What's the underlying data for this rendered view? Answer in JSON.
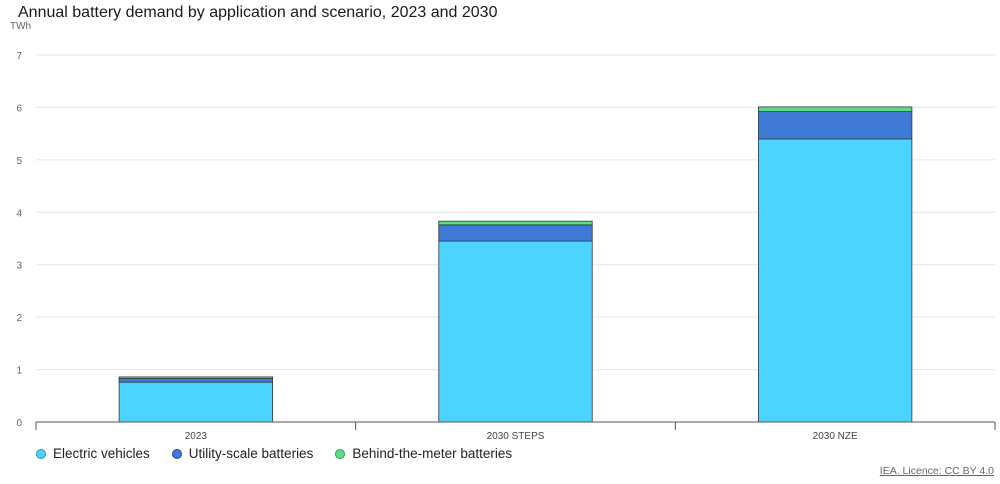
{
  "chart_data": {
    "type": "bar",
    "stacked": true,
    "title": "Annual battery demand by application and scenario, 2023 and 2030",
    "ylabel": "TWh",
    "xlabel": "",
    "categories": [
      "2023",
      "2030 STEPS",
      "2030 NZE"
    ],
    "ylim": [
      0,
      7
    ],
    "yticks": [
      0,
      1,
      2,
      3,
      4,
      5,
      6,
      7
    ],
    "grid": true,
    "legend_position": "bottom-left",
    "series": [
      {
        "name": "Electric vehicles",
        "color": "#4dd3ff",
        "values": [
          0.76,
          3.45,
          5.4
        ]
      },
      {
        "name": "Utility-scale batteries",
        "color": "#3f7bd6",
        "values": [
          0.07,
          0.31,
          0.52
        ]
      },
      {
        "name": "Behind-the-meter batteries",
        "color": "#5fde88",
        "values": [
          0.03,
          0.07,
          0.09
        ]
      }
    ]
  },
  "credit": "IEA. Licence: CC BY 4.0"
}
